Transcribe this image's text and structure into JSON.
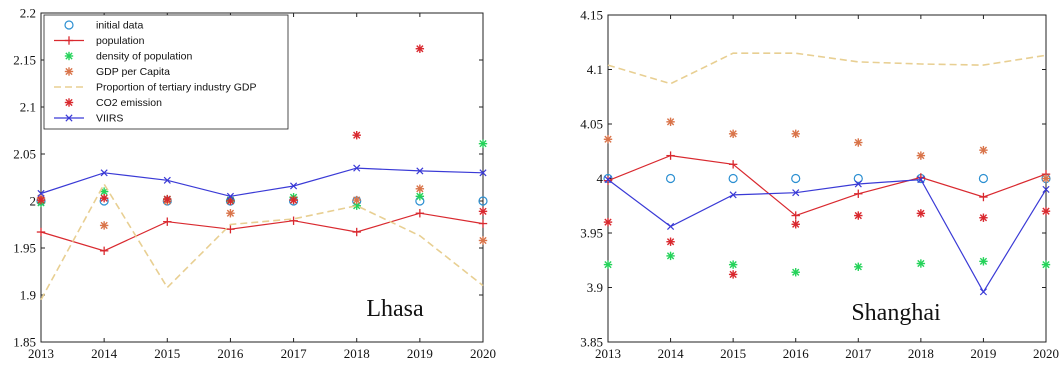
{
  "chart_data": [
    {
      "type": "line",
      "annotation": "Lhasa",
      "x": [
        2013,
        2014,
        2015,
        2016,
        2017,
        2018,
        2019,
        2020
      ],
      "xlim": [
        2013,
        2020
      ],
      "ylim": [
        1.85,
        2.2
      ],
      "y_ticks": [
        1.85,
        1.9,
        1.95,
        2,
        2.05,
        2.1,
        2.15,
        2.2
      ],
      "y_tick_labels": [
        "1.85",
        "1.9",
        "1.95",
        "2",
        "2.05",
        "2.1",
        "2.15",
        "2.2"
      ],
      "x_tick_labels": [
        "2013",
        "2014",
        "2015",
        "2016",
        "2017",
        "2018",
        "2019",
        "2020"
      ],
      "legend_position": "top-left",
      "grid": false,
      "series": [
        {
          "name": "initial data",
          "values": [
            2.0,
            2.0,
            2.0,
            2.0,
            2.0,
            2.0,
            2.0,
            2.0
          ],
          "color": "#2b8fd1",
          "marker": "circle",
          "line": "none"
        },
        {
          "name": "population",
          "values": [
            1.967,
            1.947,
            1.978,
            1.97,
            1.979,
            1.967,
            1.987,
            1.976
          ],
          "color": "#d9292f",
          "marker": "plus",
          "line": "solid"
        },
        {
          "name": "density of population",
          "values": [
            1.998,
            2.01,
            2.002,
            2.001,
            2.004,
            1.995,
            2.005,
            2.061
          ],
          "color": "#25d35a",
          "marker": "asterisk",
          "line": "none"
        },
        {
          "name": "GDP per Capita",
          "values": [
            2.003,
            1.974,
            2.0,
            1.987,
            2.001,
            2.001,
            2.013,
            1.958
          ],
          "color": "#d9744a",
          "marker": "asterisk",
          "line": "none"
        },
        {
          "name": "Proportion of tertiary industry GDP",
          "values": [
            1.895,
            2.018,
            1.908,
            1.975,
            1.981,
            1.995,
            1.963,
            1.91
          ],
          "color": "#e8cf92",
          "marker": "none",
          "line": "dashed"
        },
        {
          "name": "CO2 emission",
          "values": [
            2.001,
            2.003,
            2.002,
            2.0,
            2.001,
            2.07,
            2.162,
            1.989
          ],
          "color": "#d9292f",
          "marker": "asterisk",
          "line": "none"
        },
        {
          "name": "VIIRS",
          "values": [
            2.008,
            2.03,
            2.022,
            2.005,
            2.016,
            2.035,
            2.032,
            2.03
          ],
          "color": "#3a3ad6",
          "marker": "x",
          "line": "solid"
        }
      ]
    },
    {
      "type": "line",
      "annotation": "Shanghai",
      "x": [
        2013,
        2014,
        2015,
        2016,
        2017,
        2018,
        2019,
        2020
      ],
      "xlim": [
        2013,
        2020
      ],
      "ylim": [
        3.85,
        4.15
      ],
      "y_ticks": [
        3.85,
        3.9,
        3.95,
        4,
        4.05,
        4.1,
        4.15
      ],
      "y_tick_labels": [
        "3.85",
        "3.9",
        "3.95",
        "4",
        "4.05",
        "4.1",
        "4.15"
      ],
      "x_tick_labels": [
        "2013",
        "2014",
        "2015",
        "2016",
        "2017",
        "2018",
        "2019",
        "2020"
      ],
      "grid": false,
      "series": [
        {
          "name": "initial data",
          "values": [
            4.0,
            4.0,
            4.0,
            4.0,
            4.0,
            4.0,
            4.0,
            4.0
          ],
          "color": "#2b8fd1",
          "marker": "circle",
          "line": "none"
        },
        {
          "name": "population",
          "values": [
            3.998,
            4.021,
            4.013,
            3.966,
            3.986,
            4.001,
            3.983,
            4.004
          ],
          "color": "#d9292f",
          "marker": "plus",
          "line": "solid"
        },
        {
          "name": "density of population",
          "values": [
            3.921,
            3.929,
            3.921,
            3.914,
            3.919,
            3.922,
            3.924,
            3.921
          ],
          "color": "#25d35a",
          "marker": "asterisk",
          "line": "none"
        },
        {
          "name": "GDP per Capita",
          "values": [
            4.036,
            4.052,
            4.041,
            4.041,
            4.033,
            4.021,
            4.026,
            4.0
          ],
          "color": "#d9744a",
          "marker": "asterisk",
          "line": "none"
        },
        {
          "name": "Proportion of tertiary industry GDP",
          "values": [
            4.104,
            4.087,
            4.115,
            4.115,
            4.107,
            4.105,
            4.104,
            4.113
          ],
          "color": "#e8cf92",
          "marker": "none",
          "line": "dashed"
        },
        {
          "name": "CO2 emission",
          "values": [
            3.96,
            3.942,
            3.912,
            3.958,
            3.966,
            3.968,
            3.964,
            3.97
          ],
          "color": "#d9292f",
          "marker": "asterisk",
          "line": "none"
        },
        {
          "name": "VIIRS",
          "values": [
            3.999,
            3.956,
            3.985,
            3.987,
            3.995,
            3.999,
            3.896,
            3.99
          ],
          "color": "#3a3ad6",
          "marker": "x",
          "line": "solid"
        }
      ]
    }
  ]
}
